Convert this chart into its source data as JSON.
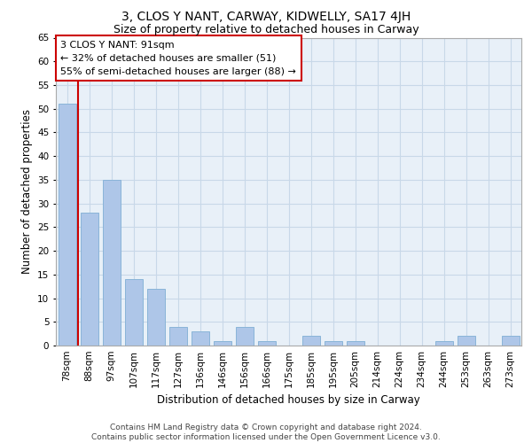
{
  "title": "3, CLOS Y NANT, CARWAY, KIDWELLY, SA17 4JH",
  "subtitle": "Size of property relative to detached houses in Carway",
  "xlabel": "Distribution of detached houses by size in Carway",
  "ylabel": "Number of detached properties",
  "categories": [
    "78sqm",
    "88sqm",
    "97sqm",
    "107sqm",
    "117sqm",
    "127sqm",
    "136sqm",
    "146sqm",
    "156sqm",
    "166sqm",
    "175sqm",
    "185sqm",
    "195sqm",
    "205sqm",
    "214sqm",
    "224sqm",
    "234sqm",
    "244sqm",
    "253sqm",
    "263sqm",
    "273sqm"
  ],
  "values": [
    51,
    28,
    35,
    14,
    12,
    4,
    3,
    1,
    4,
    1,
    0,
    2,
    1,
    1,
    0,
    0,
    0,
    1,
    2,
    0,
    2
  ],
  "bar_color": "#aec6e8",
  "bar_edge_color": "#8ab4d8",
  "grid_color": "#c8d8e8",
  "background_color": "#e8f0f8",
  "red_line_x": 0.5,
  "annotation_title": "3 CLOS Y NANT: 91sqm",
  "annotation_line1": "← 32% of detached houses are smaller (51)",
  "annotation_line2": "55% of semi-detached houses are larger (88) →",
  "annotation_box_color": "#ffffff",
  "annotation_box_edge": "#cc0000",
  "red_line_color": "#cc0000",
  "ylim": [
    0,
    65
  ],
  "yticks": [
    0,
    5,
    10,
    15,
    20,
    25,
    30,
    35,
    40,
    45,
    50,
    55,
    60,
    65
  ],
  "footer_line1": "Contains HM Land Registry data © Crown copyright and database right 2024.",
  "footer_line2": "Contains public sector information licensed under the Open Government Licence v3.0.",
  "title_fontsize": 10,
  "subtitle_fontsize": 9,
  "axis_label_fontsize": 8.5,
  "tick_fontsize": 7.5,
  "annotation_fontsize": 8,
  "footer_fontsize": 6.5
}
